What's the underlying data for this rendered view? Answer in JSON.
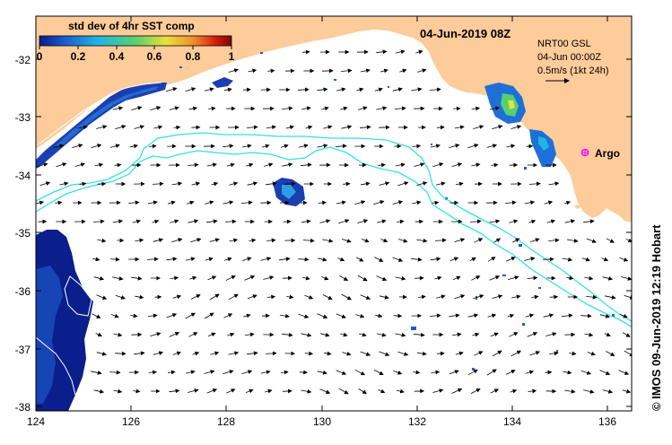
{
  "map": {
    "title": "04-Jun-2019 08Z",
    "colorbar": {
      "title": "std dev of 4hr SST comp",
      "tick_labels": [
        "0",
        "0.2",
        "0.4",
        "0.6",
        "0.8",
        "1"
      ],
      "colors": [
        "#0a1e8c",
        "#1a5fd0",
        "#1fb4e6",
        "#5ad06e",
        "#e8e23a",
        "#f0902a",
        "#d21a10",
        "#7a0a05"
      ]
    },
    "info": {
      "line1": "NRT00 GSL",
      "line2": "04-Jun 00:00Z",
      "line3": "0.5m/s (1kt 24h)"
    },
    "argo_label": "Argo",
    "credit": "© IMOS 09-Jun-2019 12:19 Hobart",
    "x_axis": {
      "min": 124,
      "max": 136.5,
      "tick_labels": [
        "124",
        "126",
        "128",
        "130",
        "132",
        "134",
        "136"
      ]
    },
    "y_axis": {
      "min": -38.05,
      "max": -31.35,
      "tick_labels": [
        "-32",
        "-33",
        "-34",
        "-35",
        "-36",
        "-37",
        "-38"
      ]
    },
    "colors": {
      "land": "#fdcc9a",
      "contour": "#33e0e8",
      "argo_marker": "#ff00ff",
      "sst_dark": "#0a1e8c",
      "sst_mid": "#1a5fd0"
    }
  }
}
